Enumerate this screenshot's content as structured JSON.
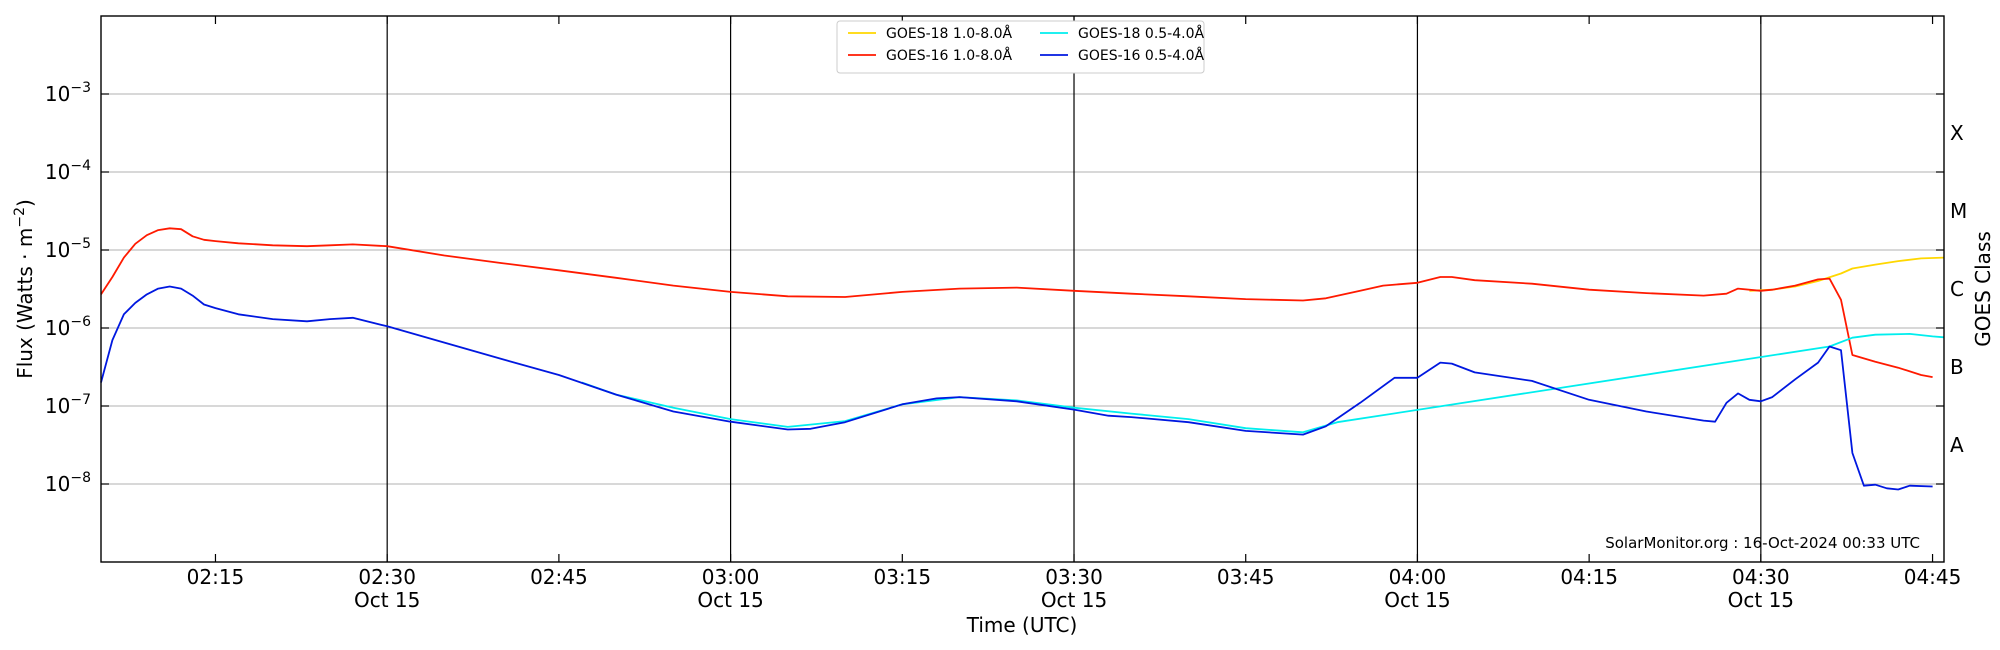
{
  "chart_data": {
    "type": "line",
    "xlabel": "Time (UTC)",
    "ylabel_main": "Flux (Watts · m",
    "ylabel_sup": "−2",
    "ylabel_close": ")",
    "right_label": "GOES Class",
    "credit": "SolarMonitor.org : 16-Oct-2024 00:33 UTC",
    "y_scale": "log",
    "ylim": [
      1e-09,
      0.01
    ],
    "xlim": [
      "02:05",
      "04:46"
    ],
    "grid": "horizontal at decades; vertical lines at half-hours",
    "legend_position": "top-center",
    "y_ticks": [
      {
        "value": 1e-08,
        "base": "10",
        "exp": "−8"
      },
      {
        "value": 1e-07,
        "base": "10",
        "exp": "−7"
      },
      {
        "value": 1e-06,
        "base": "10",
        "exp": "−6"
      },
      {
        "value": 1e-05,
        "base": "10",
        "exp": "−5"
      },
      {
        "value": 0.0001,
        "base": "10",
        "exp": "−4"
      },
      {
        "value": 0.001,
        "base": "10",
        "exp": "−3"
      }
    ],
    "x_ticks": [
      {
        "time": "02:15",
        "label": "02:15",
        "date": ""
      },
      {
        "time": "02:30",
        "label": "02:30",
        "date": "Oct 15"
      },
      {
        "time": "02:45",
        "label": "02:45",
        "date": ""
      },
      {
        "time": "03:00",
        "label": "03:00",
        "date": "Oct 15"
      },
      {
        "time": "03:15",
        "label": "03:15",
        "date": ""
      },
      {
        "time": "03:30",
        "label": "03:30",
        "date": "Oct 15"
      },
      {
        "time": "03:45",
        "label": "03:45",
        "date": ""
      },
      {
        "time": "04:00",
        "label": "04:00",
        "date": "Oct 15"
      },
      {
        "time": "04:15",
        "label": "04:15",
        "date": ""
      },
      {
        "time": "04:30",
        "label": "04:30",
        "date": "Oct 15"
      },
      {
        "time": "04:45",
        "label": "04:45",
        "date": ""
      }
    ],
    "goes_classes": [
      {
        "label": "A",
        "value": 3.16e-08
      },
      {
        "label": "B",
        "value": 3.16e-07
      },
      {
        "label": "C",
        "value": 3.16e-06
      },
      {
        "label": "M",
        "value": 3.16e-05
      },
      {
        "label": "X",
        "value": 0.000316
      }
    ],
    "series": [
      {
        "name": "GOES-18 1.0-8.0Å",
        "color": "#ffd700",
        "points": [
          [
            "04:29",
            3e-06
          ],
          [
            "04:31",
            3.1e-06
          ],
          [
            "04:33",
            3.4e-06
          ],
          [
            "04:35",
            4e-06
          ],
          [
            "04:37",
            5e-06
          ],
          [
            "04:38",
            5.8e-06
          ],
          [
            "04:40",
            6.5e-06
          ],
          [
            "04:42",
            7.2e-06
          ],
          [
            "04:44",
            7.8e-06
          ],
          [
            "04:46",
            8e-06
          ]
        ]
      },
      {
        "name": "GOES-16 1.0-8.0Å",
        "color": "#ff1a00",
        "points": [
          [
            "02:05",
            2.7e-06
          ],
          [
            "02:06",
            4.5e-06
          ],
          [
            "02:07",
            8e-06
          ],
          [
            "02:08",
            1.2e-05
          ],
          [
            "02:09",
            1.55e-05
          ],
          [
            "02:10",
            1.8e-05
          ],
          [
            "02:11",
            1.9e-05
          ],
          [
            "02:12",
            1.85e-05
          ],
          [
            "02:13",
            1.5e-05
          ],
          [
            "02:14",
            1.35e-05
          ],
          [
            "02:15",
            1.3e-05
          ],
          [
            "02:17",
            1.22e-05
          ],
          [
            "02:20",
            1.15e-05
          ],
          [
            "02:23",
            1.12e-05
          ],
          [
            "02:25",
            1.15e-05
          ],
          [
            "02:27",
            1.18e-05
          ],
          [
            "02:30",
            1.12e-05
          ],
          [
            "02:35",
            8.5e-06
          ],
          [
            "02:40",
            6.8e-06
          ],
          [
            "02:45",
            5.5e-06
          ],
          [
            "02:50",
            4.4e-06
          ],
          [
            "02:55",
            3.5e-06
          ],
          [
            "03:00",
            2.9e-06
          ],
          [
            "03:05",
            2.55e-06
          ],
          [
            "03:10",
            2.5e-06
          ],
          [
            "03:15",
            2.9e-06
          ],
          [
            "03:20",
            3.2e-06
          ],
          [
            "03:25",
            3.3e-06
          ],
          [
            "03:30",
            3e-06
          ],
          [
            "03:35",
            2.75e-06
          ],
          [
            "03:40",
            2.55e-06
          ],
          [
            "03:45",
            2.35e-06
          ],
          [
            "03:50",
            2.25e-06
          ],
          [
            "03:52",
            2.4e-06
          ],
          [
            "03:55",
            3e-06
          ],
          [
            "03:57",
            3.5e-06
          ],
          [
            "04:00",
            3.8e-06
          ],
          [
            "04:02",
            4.5e-06
          ],
          [
            "04:03",
            4.5e-06
          ],
          [
            "04:05",
            4.1e-06
          ],
          [
            "04:10",
            3.7e-06
          ],
          [
            "04:15",
            3.1e-06
          ],
          [
            "04:20",
            2.8e-06
          ],
          [
            "04:25",
            2.6e-06
          ],
          [
            "04:27",
            2.75e-06
          ],
          [
            "04:28",
            3.2e-06
          ],
          [
            "04:30",
            3e-06
          ],
          [
            "04:31",
            3.1e-06
          ],
          [
            "04:33",
            3.5e-06
          ],
          [
            "04:35",
            4.2e-06
          ],
          [
            "04:36",
            4.3e-06
          ],
          [
            "04:37",
            2.3e-06
          ],
          [
            "04:38",
            4.5e-07
          ],
          [
            "04:40",
            3.7e-07
          ],
          [
            "04:42",
            3.1e-07
          ],
          [
            "04:44",
            2.5e-07
          ],
          [
            "04:45",
            2.35e-07
          ]
        ]
      },
      {
        "name": "GOES-18 0.5-4.0Å",
        "color": "#00eeee",
        "points": [
          [
            "02:47",
            2e-07
          ],
          [
            "02:50",
            1.4e-07
          ],
          [
            "02:55",
            9.5e-08
          ],
          [
            "03:00",
            6.8e-08
          ],
          [
            "03:05",
            5.4e-08
          ],
          [
            "03:10",
            6.4e-08
          ],
          [
            "03:15",
            1.05e-07
          ],
          [
            "03:20",
            1.3e-07
          ],
          [
            "03:25",
            1.18e-07
          ],
          [
            "03:30",
            9.5e-08
          ],
          [
            "03:35",
            8e-08
          ],
          [
            "03:40",
            6.8e-08
          ],
          [
            "03:45",
            5.2e-08
          ],
          [
            "03:50",
            4.6e-08
          ],
          [
            "03:53",
            6.2e-08
          ],
          [
            "04:36",
            5.8e-07
          ],
          [
            "04:38",
            7.5e-07
          ],
          [
            "04:40",
            8.2e-07
          ],
          [
            "04:43",
            8.4e-07
          ],
          [
            "04:45",
            7.8e-07
          ],
          [
            "04:46",
            7.6e-07
          ]
        ]
      },
      {
        "name": "GOES-16 0.5-4.0Å",
        "color": "#0018e0",
        "points": [
          [
            "02:05",
            2e-07
          ],
          [
            "02:06",
            7e-07
          ],
          [
            "02:07",
            1.5e-06
          ],
          [
            "02:08",
            2.1e-06
          ],
          [
            "02:09",
            2.7e-06
          ],
          [
            "02:10",
            3.2e-06
          ],
          [
            "02:11",
            3.4e-06
          ],
          [
            "02:12",
            3.2e-06
          ],
          [
            "02:13",
            2.6e-06
          ],
          [
            "02:14",
            2e-06
          ],
          [
            "02:15",
            1.8e-06
          ],
          [
            "02:17",
            1.5e-06
          ],
          [
            "02:20",
            1.3e-06
          ],
          [
            "02:23",
            1.22e-06
          ],
          [
            "02:25",
            1.3e-06
          ],
          [
            "02:27",
            1.35e-06
          ],
          [
            "02:30",
            1.05e-06
          ],
          [
            "02:35",
            6.5e-07
          ],
          [
            "02:40",
            4e-07
          ],
          [
            "02:45",
            2.5e-07
          ],
          [
            "02:50",
            1.4e-07
          ],
          [
            "02:55",
            8.5e-08
          ],
          [
            "03:00",
            6.3e-08
          ],
          [
            "03:05",
            5e-08
          ],
          [
            "03:07",
            5.1e-08
          ],
          [
            "03:10",
            6.2e-08
          ],
          [
            "03:15",
            1.05e-07
          ],
          [
            "03:18",
            1.25e-07
          ],
          [
            "03:20",
            1.3e-07
          ],
          [
            "03:25",
            1.15e-07
          ],
          [
            "03:30",
            9e-08
          ],
          [
            "03:33",
            7.5e-08
          ],
          [
            "03:35",
            7.2e-08
          ],
          [
            "03:40",
            6.2e-08
          ],
          [
            "03:45",
            4.8e-08
          ],
          [
            "03:50",
            4.3e-08
          ],
          [
            "03:52",
            5.5e-08
          ],
          [
            "03:55",
            1.1e-07
          ],
          [
            "03:58",
            2.3e-07
          ],
          [
            "04:00",
            2.3e-07
          ],
          [
            "04:02",
            3.6e-07
          ],
          [
            "04:03",
            3.5e-07
          ],
          [
            "04:05",
            2.7e-07
          ],
          [
            "04:10",
            2.1e-07
          ],
          [
            "04:15",
            1.2e-07
          ],
          [
            "04:20",
            8.5e-08
          ],
          [
            "04:25",
            6.5e-08
          ],
          [
            "04:26",
            6.3e-08
          ],
          [
            "04:27",
            1.1e-07
          ],
          [
            "04:28",
            1.45e-07
          ],
          [
            "04:29",
            1.2e-07
          ],
          [
            "04:30",
            1.15e-07
          ],
          [
            "04:31",
            1.3e-07
          ],
          [
            "04:33",
            2.2e-07
          ],
          [
            "04:35",
            3.6e-07
          ],
          [
            "04:36",
            5.8e-07
          ],
          [
            "04:37",
            5.2e-07
          ],
          [
            "04:38",
            2.5e-08
          ],
          [
            "04:39",
            9.5e-09
          ],
          [
            "04:40",
            9.8e-09
          ],
          [
            "04:41",
            8.8e-09
          ],
          [
            "04:42",
            8.5e-09
          ],
          [
            "04:43",
            9.5e-09
          ],
          [
            "04:45",
            9.3e-09
          ]
        ]
      }
    ]
  }
}
